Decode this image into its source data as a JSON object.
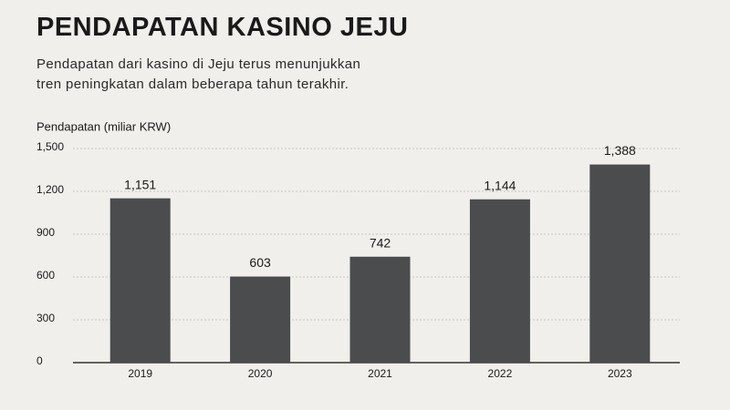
{
  "chart_data": {
    "type": "bar",
    "title": "PENDAPATAN KASINO JEJU",
    "subtitle": [
      "Pendapatan dari kasino di Jeju terus menunjukkan",
      "tren peningkatan dalam beberapa tahun terakhir."
    ],
    "y_label": "Pendapatan (miliar KRW)",
    "categories": [
      "2019",
      "2020",
      "2021",
      "2022",
      "2023"
    ],
    "values": [
      1151,
      603,
      742,
      1144,
      1388
    ],
    "value_labels": [
      "1,151",
      "603",
      "742",
      "1,144",
      "1,388"
    ],
    "color": "#4a4c4e",
    "ylim": [
      0,
      1500
    ],
    "yticks": [
      0,
      300,
      600,
      900,
      {
        "value": 1200,
        "label": "1,200"
      },
      {
        "value": 1500,
        "label": "1,500"
      }
    ],
    "grid": true
  }
}
